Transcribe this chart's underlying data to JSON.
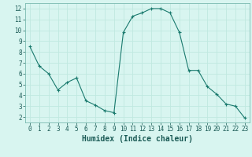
{
  "x": [
    0,
    1,
    2,
    3,
    4,
    5,
    6,
    7,
    8,
    9,
    10,
    11,
    12,
    13,
    14,
    15,
    16,
    17,
    18,
    19,
    20,
    21,
    22,
    23
  ],
  "y": [
    8.5,
    6.7,
    6.0,
    4.5,
    5.2,
    5.6,
    3.5,
    3.1,
    2.6,
    2.4,
    9.8,
    11.3,
    11.6,
    12.0,
    12.0,
    11.6,
    9.8,
    6.3,
    6.3,
    4.8,
    4.1,
    3.2,
    3.0,
    1.9
  ],
  "xlabel": "Humidex (Indice chaleur)",
  "xlim": [
    -0.5,
    23.5
  ],
  "ylim": [
    1.5,
    12.5
  ],
  "yticks": [
    2,
    3,
    4,
    5,
    6,
    7,
    8,
    9,
    10,
    11,
    12
  ],
  "xticks": [
    0,
    1,
    2,
    3,
    4,
    5,
    6,
    7,
    8,
    9,
    10,
    11,
    12,
    13,
    14,
    15,
    16,
    17,
    18,
    19,
    20,
    21,
    22,
    23
  ],
  "line_color": "#1a7a6e",
  "bg_color": "#d8f5f0",
  "grid_color": "#c0e8e0",
  "spine_color": "#7abab0",
  "tick_color": "#1a5a55",
  "font_size": 5.5,
  "xlabel_font_size": 7.0
}
